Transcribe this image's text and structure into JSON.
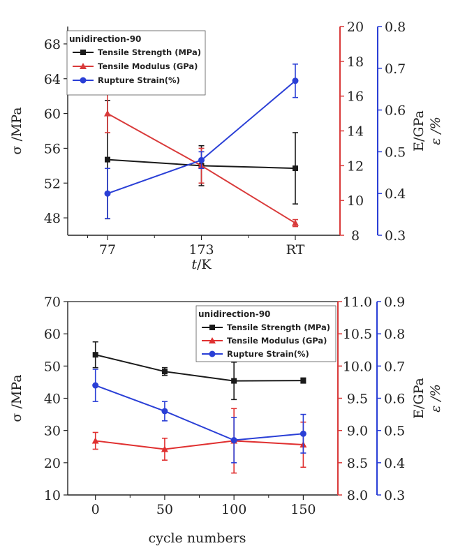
{
  "chart_data": [
    {
      "type": "line",
      "legend_title": "unidirection-90",
      "legend_position": "top-left",
      "categories": [
        "77",
        "173",
        "RT"
      ],
      "xlabel_italic": "t",
      "xlabel_rest": "/K",
      "ylabel_left": "σ /MPa",
      "ylabel_right1": "E/GPa",
      "ylabel_right2": "ε /%",
      "ylim_left": [
        46,
        70
      ],
      "ylim_right1": [
        8,
        20
      ],
      "ylim_right2": [
        0.3,
        0.8
      ],
      "yticks_left": [
        "48",
        "52",
        "56",
        "60",
        "64",
        "68"
      ],
      "yticks_right1": [
        "8",
        "10",
        "12",
        "14",
        "16",
        "18",
        "20"
      ],
      "yticks_right2": [
        "0.3",
        "0.4",
        "0.5",
        "0.6",
        "0.7",
        "0.8"
      ],
      "series": [
        {
          "name": "Tensile Strength (MPa)",
          "axis": "left",
          "color": "#1a1a1a",
          "marker": "square",
          "values": [
            54.7,
            54.0,
            53.7
          ],
          "errors": [
            6.8,
            2.3,
            4.1
          ]
        },
        {
          "name": "Tensile Modulus (GPa)",
          "axis": "right1",
          "color": "#d93a3a",
          "marker": "triangle",
          "values": [
            15.0,
            12.0,
            8.7
          ],
          "errors": [
            1.1,
            1.0,
            0.2
          ]
        },
        {
          "name": "Rupture Strain(%)",
          "axis": "right2",
          "color": "#2a3fd6",
          "marker": "circle",
          "values": [
            0.4,
            0.48,
            0.67
          ],
          "errors": [
            0.06,
            0.02,
            0.04
          ]
        }
      ]
    },
    {
      "type": "line",
      "legend_title": "unidirection-90",
      "legend_position": "top-right",
      "x": [
        0,
        50,
        100,
        150
      ],
      "xticks": [
        "0",
        "50",
        "100",
        "150"
      ],
      "xlim": [
        -20,
        175
      ],
      "xlabel": "cycle numbers",
      "ylabel_left": "σ /MPa",
      "ylabel_right1": "E/GPa",
      "ylabel_right2": "ε /%",
      "ylim_left": [
        10,
        70
      ],
      "ylim_right1": [
        8.0,
        11.0
      ],
      "ylim_right2": [
        0.3,
        0.9
      ],
      "yticks_left": [
        "10",
        "20",
        "30",
        "40",
        "50",
        "60",
        "70"
      ],
      "yticks_right1": [
        "8.0",
        "8.5",
        "9.0",
        "9.5",
        "10.0",
        "10.5",
        "11.0"
      ],
      "yticks_right2": [
        "0.3",
        "0.4",
        "0.5",
        "0.6",
        "0.7",
        "0.8",
        "0.9"
      ],
      "series": [
        {
          "name": "Tensile Strength (MPa)",
          "axis": "left",
          "color": "#1a1a1a",
          "marker": "square",
          "values": [
            53.5,
            48.3,
            45.4,
            45.5
          ],
          "errors": [
            4.0,
            1.2,
            5.8,
            0.8
          ]
        },
        {
          "name": "Tensile Modulus (GPa)",
          "axis": "right1",
          "color": "#e03030",
          "marker": "triangle",
          "values": [
            8.84,
            8.71,
            8.84,
            8.78
          ],
          "errors": [
            0.13,
            0.17,
            0.5,
            0.35
          ]
        },
        {
          "name": "Rupture Strain(%)",
          "axis": "right2",
          "color": "#2a3fd6",
          "marker": "circle",
          "values": [
            0.64,
            0.56,
            0.47,
            0.49
          ],
          "errors": [
            0.05,
            0.03,
            0.07,
            0.06
          ]
        }
      ]
    }
  ]
}
